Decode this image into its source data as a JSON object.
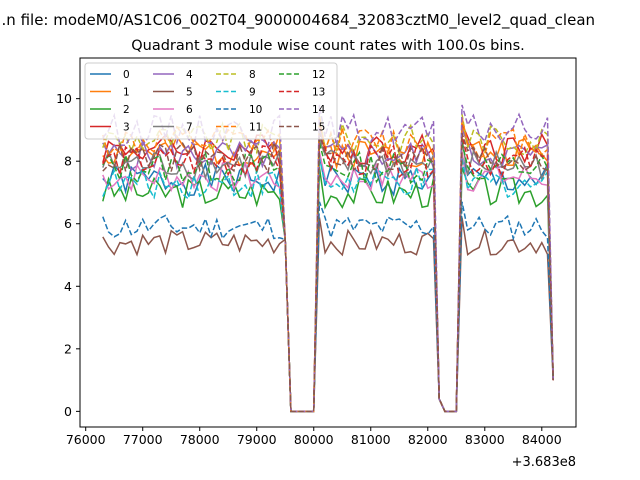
{
  "chart_data": {
    "type": "line",
    "suptitle": "...n file: modeM0/AS1C06_002T04_9000004684_32083cztM0_level2_quad_clean",
    "title": "Quadrant 3 module wise count rates with 100.0s bins.",
    "xlabel": "",
    "ylabel": "",
    "x_offset_label": "+3.683e8",
    "xlim": [
      75900,
      84600
    ],
    "ylim": [
      -0.5,
      11.3
    ],
    "x_ticks": [
      76000,
      77000,
      78000,
      79000,
      80000,
      81000,
      82000,
      83000,
      84000
    ],
    "x_tick_labels": [
      "76000",
      "77000",
      "78000",
      "79000",
      "80000",
      "81000",
      "82000",
      "83000",
      "84000"
    ],
    "y_ticks": [
      0,
      2,
      4,
      6,
      8,
      10
    ],
    "y_tick_labels": [
      "0",
      "2",
      "4",
      "6",
      "8",
      "10"
    ],
    "grid": false,
    "legend_position": "top-left",
    "legend_columns": 4,
    "segments": [
      {
        "x_start": 76300,
        "x_end": 79400,
        "step": 100
      },
      {
        "x_start": 80100,
        "x_end": 82100,
        "step": 100
      },
      {
        "x_start": 82600,
        "x_end": 84100,
        "step": 100
      }
    ],
    "gap_points": [
      {
        "x": 79500,
        "y": 5.5
      },
      {
        "x": 79600,
        "y": 0
      },
      {
        "x": 79700,
        "y": 0
      },
      {
        "x": 79800,
        "y": 0
      },
      {
        "x": 79900,
        "y": 0
      },
      {
        "x": 80000,
        "y": 0
      },
      {
        "x": 82200,
        "y": 0.4
      },
      {
        "x": 82300,
        "y": 0
      },
      {
        "x": 82400,
        "y": 0
      },
      {
        "x": 82500,
        "y": 0
      },
      {
        "x": 84200,
        "y": 1.0
      }
    ],
    "series": [
      {
        "name": "0",
        "color": "#1f77b4",
        "dash": "solid",
        "level": 7.4,
        "amp": 0.5,
        "seed": 1
      },
      {
        "name": "1",
        "color": "#ff7f0e",
        "dash": "solid",
        "level": 8.3,
        "amp": 0.5,
        "seed": 2
      },
      {
        "name": "2",
        "color": "#2ca02c",
        "dash": "solid",
        "level": 7.0,
        "amp": 0.5,
        "seed": 3
      },
      {
        "name": "3",
        "color": "#d62728",
        "dash": "solid",
        "level": 8.4,
        "amp": 0.5,
        "seed": 4
      },
      {
        "name": "4",
        "color": "#9467bd",
        "dash": "solid",
        "level": 8.2,
        "amp": 0.5,
        "seed": 5
      },
      {
        "name": "5",
        "color": "#8c564b",
        "dash": "solid",
        "level": 5.4,
        "amp": 0.4,
        "seed": 6
      },
      {
        "name": "6",
        "color": "#e377c2",
        "dash": "solid",
        "level": 7.5,
        "amp": 0.5,
        "seed": 7
      },
      {
        "name": "7",
        "color": "#7f7f7f",
        "dash": "solid",
        "level": 7.9,
        "amp": 0.5,
        "seed": 8
      },
      {
        "name": "8",
        "color": "#bcbd22",
        "dash": "dashed",
        "level": 8.7,
        "amp": 0.5,
        "seed": 9
      },
      {
        "name": "9",
        "color": "#17becf",
        "dash": "dashed",
        "level": 7.3,
        "amp": 0.5,
        "seed": 10
      },
      {
        "name": "10",
        "color": "#1f77b4",
        "dash": "dashed",
        "level": 5.9,
        "amp": 0.4,
        "seed": 11
      },
      {
        "name": "11",
        "color": "#ff7f0e",
        "dash": "dashed",
        "level": 8.6,
        "amp": 0.5,
        "seed": 12
      },
      {
        "name": "12",
        "color": "#2ca02c",
        "dash": "dashed",
        "level": 7.8,
        "amp": 0.5,
        "seed": 13
      },
      {
        "name": "13",
        "color": "#d62728",
        "dash": "dashed",
        "level": 8.0,
        "amp": 0.5,
        "seed": 14
      },
      {
        "name": "14",
        "color": "#9467bd",
        "dash": "dashed",
        "level": 9.0,
        "amp": 0.5,
        "seed": 15
      },
      {
        "name": "15",
        "color": "#8c564b",
        "dash": "dashed",
        "level": 8.1,
        "amp": 0.5,
        "seed": 16
      }
    ]
  }
}
